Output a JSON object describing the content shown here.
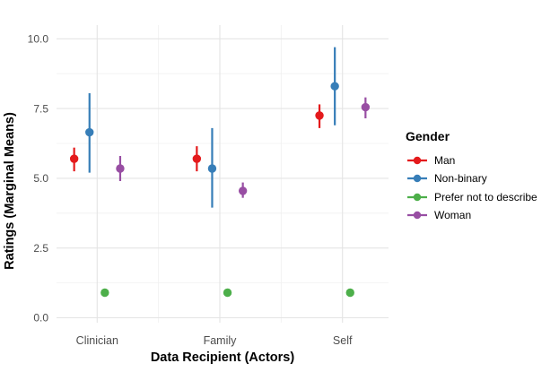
{
  "chart_data": {
    "type": "pointrange",
    "title": "",
    "xlabel": "Data Recipient (Actors)",
    "ylabel": "Ratings (Marginal Means)",
    "legend_title": "Gender",
    "legend_position": "right",
    "background": "#ffffff",
    "grid": {
      "major": "#e4e4e4",
      "minor": "#f0f0f0"
    },
    "axis_text_color": "#4d4d4d",
    "categories": [
      "Clinician",
      "Family",
      "Self"
    ],
    "ylim": [
      0,
      10
    ],
    "yticks": [
      {
        "label": "0.0",
        "value": 0
      },
      {
        "label": "2.5",
        "value": 2.5
      },
      {
        "label": "5.0",
        "value": 5
      },
      {
        "label": "7.5",
        "value": 7.5
      },
      {
        "label": "10.0",
        "value": 10
      }
    ],
    "series": [
      {
        "name": "Man",
        "color": "#e41a1c",
        "points": [
          {
            "category": "Clinician",
            "mean": 5.7,
            "lower": 5.25,
            "upper": 6.1
          },
          {
            "category": "Family",
            "mean": 5.7,
            "lower": 5.25,
            "upper": 6.15
          },
          {
            "category": "Self",
            "mean": 7.25,
            "lower": 6.8,
            "upper": 7.65
          }
        ]
      },
      {
        "name": "Non-binary",
        "color": "#377eb8",
        "points": [
          {
            "category": "Clinician",
            "mean": 6.65,
            "lower": 5.2,
            "upper": 8.05
          },
          {
            "category": "Family",
            "mean": 5.35,
            "lower": 3.95,
            "upper": 6.8
          },
          {
            "category": "Self",
            "mean": 8.3,
            "lower": 6.9,
            "upper": 9.7
          }
        ]
      },
      {
        "name": "Prefer not to describe",
        "color": "#4daf4a",
        "points": [
          {
            "category": "Clinician",
            "mean": 0.9,
            "lower": 0.9,
            "upper": 0.9
          },
          {
            "category": "Family",
            "mean": 0.9,
            "lower": 0.9,
            "upper": 0.9
          },
          {
            "category": "Self",
            "mean": 0.9,
            "lower": 0.9,
            "upper": 0.9
          }
        ]
      },
      {
        "name": "Woman",
        "color": "#984ea3",
        "points": [
          {
            "category": "Clinician",
            "mean": 5.35,
            "lower": 4.9,
            "upper": 5.8
          },
          {
            "category": "Family",
            "mean": 4.55,
            "lower": 4.3,
            "upper": 4.85
          },
          {
            "category": "Self",
            "mean": 7.55,
            "lower": 7.15,
            "upper": 7.9
          }
        ]
      }
    ]
  }
}
